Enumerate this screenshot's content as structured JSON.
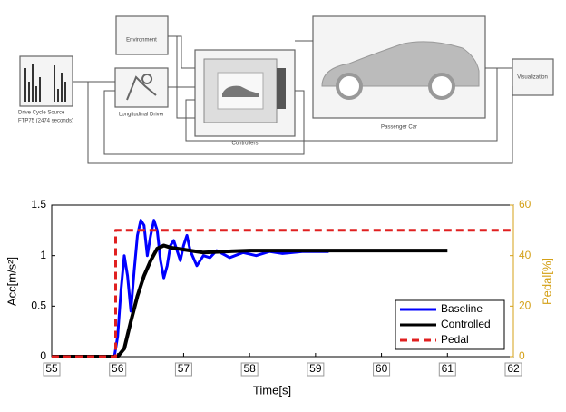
{
  "diagram": {
    "blocks": [
      {
        "label": "Drive Cycle Source",
        "sublabel": "FTP75 (2474 seconds)"
      },
      {
        "label": "Environment"
      },
      {
        "label": "Longitudinal Driver"
      },
      {
        "label": "Controllers"
      },
      {
        "label": "Passenger Car"
      },
      {
        "label": "Visualization"
      }
    ]
  },
  "chart_data": {
    "type": "line",
    "xlabel": "Time[s]",
    "ylabel": "Acc[m/s²]",
    "y2label": "Pedal[%]",
    "xlim": [
      55,
      62
    ],
    "xticks": [
      55,
      56,
      57,
      58,
      59,
      60,
      61,
      62
    ],
    "ylim": [
      0,
      1.5
    ],
    "yticks": [
      0,
      0.5,
      1,
      1.5
    ],
    "y2lim": [
      0,
      60
    ],
    "y2ticks": [
      0,
      20,
      40,
      60
    ],
    "y2color": "#d4a017",
    "legend": "lower right",
    "series": [
      {
        "name": "Baseline",
        "color": "#0000ff",
        "linestyle": "solid",
        "x": [
          55,
          55.95,
          56,
          56.05,
          56.1,
          56.15,
          56.2,
          56.25,
          56.3,
          56.35,
          56.4,
          56.45,
          56.5,
          56.55,
          56.6,
          56.65,
          56.7,
          56.75,
          56.8,
          56.85,
          56.9,
          56.95,
          57,
          57.05,
          57.1,
          57.2,
          57.3,
          57.4,
          57.5,
          57.7,
          57.9,
          58.1,
          58.3,
          58.5,
          58.8,
          59.2
        ],
        "values": [
          0,
          0,
          0.2,
          0.65,
          1.0,
          0.8,
          0.45,
          0.85,
          1.2,
          1.35,
          1.3,
          1.0,
          1.2,
          1.35,
          1.25,
          0.95,
          0.78,
          0.9,
          1.1,
          1.15,
          1.05,
          0.95,
          1.1,
          1.2,
          1.05,
          0.9,
          1.0,
          0.98,
          1.05,
          0.98,
          1.03,
          1.0,
          1.04,
          1.02,
          1.04,
          1.04
        ]
      },
      {
        "name": "Controlled",
        "color": "#000000",
        "linestyle": "solid",
        "x": [
          55,
          56,
          56.1,
          56.2,
          56.3,
          56.4,
          56.5,
          56.6,
          56.7,
          56.8,
          57,
          57.3,
          57.6,
          58,
          61
        ],
        "values": [
          0,
          0,
          0.08,
          0.35,
          0.6,
          0.8,
          0.95,
          1.07,
          1.1,
          1.08,
          1.06,
          1.03,
          1.04,
          1.05,
          1.05
        ]
      },
      {
        "name": "Pedal",
        "color": "#e02020",
        "linestyle": "dashed",
        "axis": "y2",
        "x": [
          55,
          55.97,
          55.97,
          62
        ],
        "values": [
          0,
          0,
          50,
          50
        ]
      }
    ]
  }
}
